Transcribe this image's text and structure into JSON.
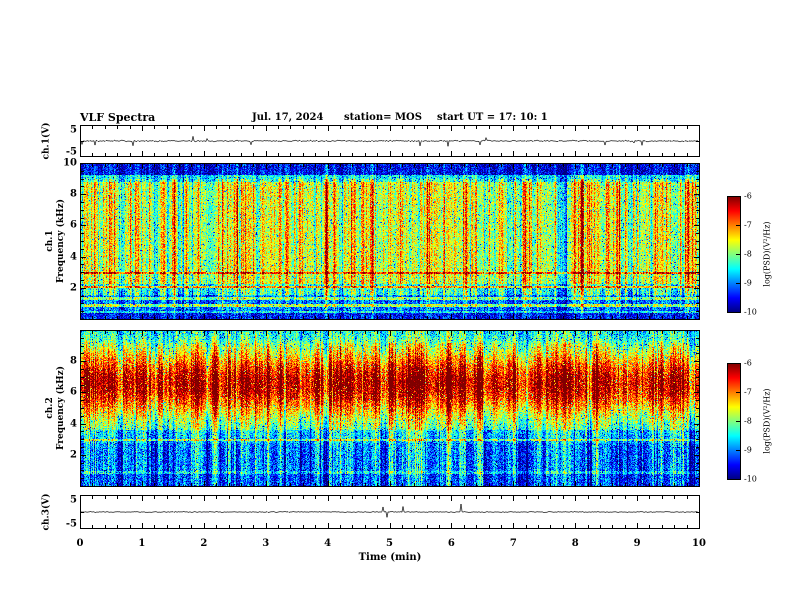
{
  "figure": {
    "title": "VLF Spectra",
    "date": "Jul. 17, 2024",
    "station": "station= MOS",
    "start_ut": "start UT =  17: 10: 1",
    "xlabel": "Time (min)"
  },
  "labels": {
    "ch1_voltage": "ch.1(V)",
    "ch3_voltage": "ch.3(V)",
    "ch1": "ch.1",
    "ch2": "ch.2",
    "frequency": "Frequency (kHz)",
    "colorbar": "log(PSD)(V²/Hz)"
  },
  "axes": {
    "x": {
      "min": 0,
      "max": 10,
      "ticks": [
        0,
        1,
        2,
        3,
        4,
        5,
        6,
        7,
        8,
        9,
        10
      ]
    },
    "spec_y_ch1": [
      10,
      8,
      6,
      4,
      2
    ],
    "spec_y_ch2": [
      8,
      6,
      4,
      2
    ],
    "wave_y": [
      5,
      -5
    ],
    "colorbar_ticks": [
      -6,
      -7,
      -8,
      -9,
      -10
    ]
  },
  "chart_data": [
    {
      "type": "line",
      "name": "ch.1 voltage waveform",
      "xlabel": "Time (min)",
      "x_range": [
        0,
        10
      ],
      "ylabel": "ch.1(V)",
      "y_range": [
        -5,
        5
      ],
      "description": "near-flat noise trace around 0 V with sparse small impulsive spikes",
      "render": {
        "seed": 555,
        "noise": 0.25,
        "spike_density": 0.02,
        "spike_amp": 1.8
      }
    },
    {
      "type": "heatmap",
      "name": "ch.1 VLF spectrogram",
      "xlabel": "Time (min)",
      "x_range": [
        0,
        10
      ],
      "ylabel": "Frequency (kHz)",
      "y_range": [
        0,
        10
      ],
      "value_label": "log(PSD)(V²/Hz)",
      "value_range": [
        -10,
        -6
      ],
      "colormap": "jet",
      "description": "green mid-band 2-9 kHz with dense vertical red/yellow sferic streaks, dark band above 9.3 kHz, dark low band below 2 kHz with narrow horizontal emission lines near 0.5, 0.9, 1.35, 2.1 and 3 kHz",
      "render": {
        "seed": 12345,
        "noise": 0.13,
        "base": [
          [
            0,
            0.1
          ],
          [
            0.55,
            0.17
          ],
          [
            1.6,
            0.3
          ],
          [
            2.3,
            0.46
          ],
          [
            8.8,
            0.3
          ],
          [
            9.25,
            0.06
          ]
        ],
        "profile": [
          [
            0,
            0.35
          ],
          [
            0.6,
            0.6
          ],
          [
            1.5,
            1.0
          ],
          [
            9.0,
            0.5
          ]
        ],
        "gauss": null,
        "lines": [
          {
            "freq": 0.5,
            "amp": 0.22
          },
          {
            "freq": 0.9,
            "amp": 0.3
          },
          {
            "freq": 1.35,
            "amp": 0.26
          },
          {
            "freq": 2.1,
            "amp": 0.3
          },
          {
            "freq": 3.0,
            "amp": 0.26
          }
        ],
        "streak": {
          "strength": 0.62,
          "hot_density": 0.05,
          "dark_density": 0.1,
          "dark_strength": 0.25
        }
      }
    },
    {
      "type": "heatmap",
      "name": "ch.2 VLF spectrogram",
      "xlabel": "Time (min)",
      "x_range": [
        0,
        10
      ],
      "ylabel": "Frequency (kHz)",
      "y_range": [
        0,
        10
      ],
      "value_label": "log(PSD)(V²/Hz)",
      "value_range": [
        -10,
        -6
      ],
      "colormap": "jet",
      "description": "intense yellow/red band centered near 6.5 kHz, green/cyan speckle above 9 kHz, dark blue low band below 3 kHz crossed by vertical streaks and a horizontal line near 3 kHz",
      "render": {
        "seed": 98765,
        "noise": 0.14,
        "base": [
          [
            0,
            0.12
          ],
          [
            0.8,
            0.15
          ],
          [
            2.8,
            0.2
          ],
          [
            3.6,
            0.3
          ],
          [
            8.9,
            0.3
          ],
          [
            9.4,
            0.28
          ]
        ],
        "profile": [
          [
            0,
            0.9
          ],
          [
            1.0,
            1.0
          ],
          [
            9.2,
            0.7
          ]
        ],
        "gauss": {
          "center": 6.6,
          "sigma": 1.5,
          "amp": 0.55
        },
        "lines": [
          {
            "freq": 3.0,
            "amp": 0.22
          },
          {
            "freq": 0.9,
            "amp": 0.12
          }
        ],
        "streak": {
          "strength": 0.55,
          "hot_density": 0.05,
          "dark_density": 0.1,
          "dark_strength": 0.3
        }
      }
    },
    {
      "type": "line",
      "name": "ch.3 voltage waveform",
      "xlabel": "Time (min)",
      "x_range": [
        0,
        10
      ],
      "ylabel": "ch.3(V)",
      "y_range": [
        -5,
        5
      ],
      "description": "near-flat noise trace around 0 V with a few isolated larger spikes",
      "render": {
        "seed": 777,
        "noise": 0.18,
        "spike_density": 0.008,
        "spike_amp": 3.0
      }
    }
  ]
}
